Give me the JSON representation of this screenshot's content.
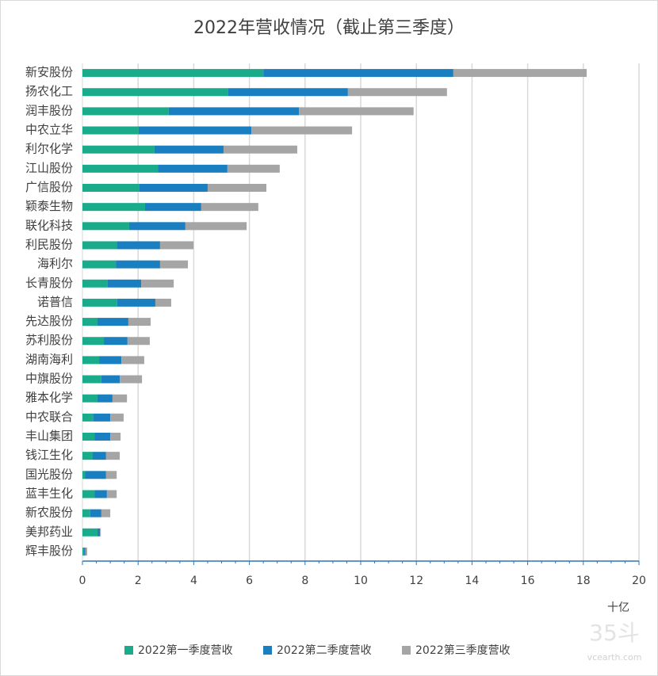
{
  "chart_data": {
    "type": "stacked-barh",
    "title": "2022年营收情况（截止第三季度）",
    "x_label": "十亿",
    "categories": [
      "新安股份",
      "扬农化工",
      "润丰股份",
      "中农立华",
      "利尔化学",
      "江山股份",
      "广信股份",
      "颖泰生物",
      "联化科技",
      "利民股份",
      "海利尔",
      "长青股份",
      "诺普信",
      "先达股份",
      "苏利股份",
      "湖南海利",
      "中旗股份",
      "雅本化学",
      "中农联合",
      "丰山集团",
      "钱江生化",
      "国光股份",
      "蓝丰生化",
      "新农股份",
      "美邦药业",
      "辉丰股份"
    ],
    "series": [
      {
        "name": "2022第一季度营收",
        "color": "#1aab8a",
        "values": [
          6.5,
          5.24,
          3.1,
          2.02,
          2.59,
          2.71,
          2.05,
          2.25,
          1.68,
          1.23,
          1.2,
          0.91,
          1.25,
          0.54,
          0.77,
          0.6,
          0.68,
          0.54,
          0.4,
          0.43,
          0.37,
          0.1,
          0.43,
          0.28,
          0.54,
          0.06
        ]
      },
      {
        "name": "2022第二季度营收",
        "color": "#1a7fc1",
        "values": [
          6.83,
          4.3,
          4.68,
          4.05,
          2.48,
          2.5,
          2.45,
          2.02,
          2.02,
          1.56,
          1.59,
          1.2,
          1.37,
          1.11,
          0.85,
          0.8,
          0.66,
          0.54,
          0.6,
          0.57,
          0.48,
          0.75,
          0.45,
          0.4,
          0.09,
          0.05
        ]
      },
      {
        "name": "2022第三季度营收",
        "color": "#a5a5a5",
        "values": [
          4.79,
          3.56,
          4.12,
          3.62,
          2.65,
          1.88,
          2.11,
          2.05,
          2.2,
          1.2,
          1.0,
          1.17,
          0.57,
          0.8,
          0.8,
          0.82,
          0.8,
          0.52,
          0.48,
          0.37,
          0.49,
          0.38,
          0.35,
          0.32,
          0.03,
          0.06
        ]
      }
    ],
    "xlim": [
      0,
      20
    ],
    "xticks": [
      0,
      2,
      4,
      6,
      8,
      10,
      12,
      14,
      16,
      18,
      20
    ],
    "grid": true,
    "legend": "bottom",
    "watermark": {
      "logo": "35斗",
      "site": "vcearth.com"
    }
  }
}
